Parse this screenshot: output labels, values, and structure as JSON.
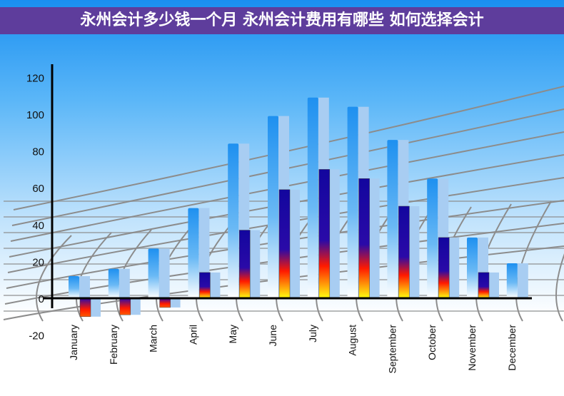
{
  "title": "永州会计多少钱一个月 永州会计费用有哪些 如何选择会计",
  "chart_data": {
    "type": "bar",
    "style": "3d",
    "categories": [
      "January",
      "February",
      "March",
      "April",
      "May",
      "June",
      "July",
      "August",
      "September",
      "October",
      "November",
      "December"
    ],
    "series": [
      {
        "values": [
          12,
          16,
          27,
          49,
          84,
          99,
          109,
          104,
          86,
          65,
          33,
          19
        ],
        "color": "#1e90f0"
      },
      {
        "values": [
          -10,
          -9,
          -5,
          14,
          37,
          59,
          70,
          65,
          50,
          33,
          14,
          null
        ],
        "color": "#1a0aa8"
      }
    ],
    "yticks": [
      -20,
      0,
      20,
      40,
      60,
      80,
      100,
      120
    ],
    "ylim": [
      -20,
      120
    ],
    "grid": false,
    "legend": "none"
  }
}
